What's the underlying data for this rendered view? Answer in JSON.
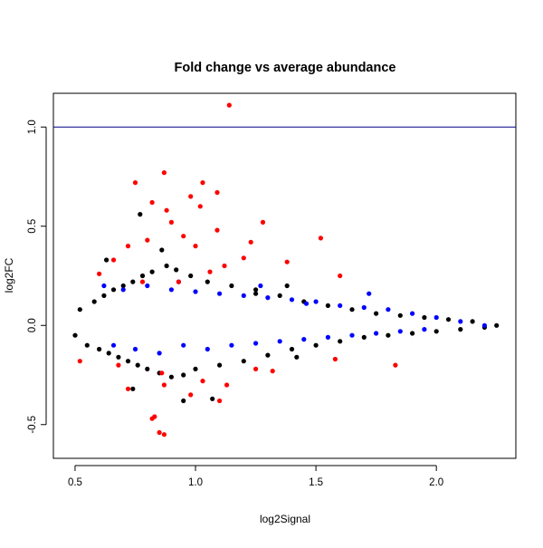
{
  "chart_data": {
    "type": "scatter",
    "title": "Fold change vs average abundance",
    "xlabel": "log2Signal",
    "ylabel": "log2FC",
    "xlim": [
      0.41,
      2.33
    ],
    "ylim": [
      -0.67,
      1.17
    ],
    "x_ticks": [
      0.5,
      1.0,
      1.5,
      2.0
    ],
    "x_tick_labels": [
      "0.5",
      "1.0",
      "1.5",
      "2.0"
    ],
    "y_ticks": [
      -0.5,
      0.0,
      0.5,
      1.0
    ],
    "y_tick_labels": [
      "-0.5",
      "0.0",
      "0.5",
      "1.0"
    ],
    "reference_line": {
      "y": 1.0,
      "color": "#00008b"
    },
    "grid": false,
    "colors": {
      "base": "#000000",
      "blue": "#0000ff",
      "red": "#ff0000"
    },
    "series": [
      {
        "color": "#000000",
        "description": "bulk points concentrated near 0 (dense cloud)",
        "points": [
          [
            0.5,
            -0.05
          ],
          [
            0.52,
            0.08
          ],
          [
            0.55,
            -0.1
          ],
          [
            0.58,
            0.12
          ],
          [
            0.6,
            -0.12
          ],
          [
            0.62,
            0.15
          ],
          [
            0.64,
            -0.14
          ],
          [
            0.66,
            0.18
          ],
          [
            0.68,
            -0.16
          ],
          [
            0.7,
            0.2
          ],
          [
            0.72,
            -0.18
          ],
          [
            0.74,
            0.22
          ],
          [
            0.76,
            -0.2
          ],
          [
            0.78,
            0.25
          ],
          [
            0.8,
            -0.22
          ],
          [
            0.82,
            0.27
          ],
          [
            0.85,
            -0.24
          ],
          [
            0.88,
            0.3
          ],
          [
            0.9,
            -0.26
          ],
          [
            0.92,
            0.28
          ],
          [
            0.95,
            -0.25
          ],
          [
            0.98,
            0.25
          ],
          [
            1.0,
            -0.22
          ],
          [
            1.05,
            0.22
          ],
          [
            1.1,
            -0.2
          ],
          [
            1.15,
            0.2
          ],
          [
            1.2,
            -0.18
          ],
          [
            1.25,
            0.18
          ],
          [
            1.3,
            -0.15
          ],
          [
            1.35,
            0.15
          ],
          [
            1.4,
            -0.12
          ],
          [
            1.45,
            0.12
          ],
          [
            1.5,
            -0.1
          ],
          [
            1.55,
            0.1
          ],
          [
            1.6,
            -0.08
          ],
          [
            1.65,
            0.08
          ],
          [
            1.7,
            -0.06
          ],
          [
            1.75,
            0.06
          ],
          [
            1.8,
            -0.05
          ],
          [
            1.85,
            0.05
          ],
          [
            1.9,
            -0.04
          ],
          [
            1.95,
            0.04
          ],
          [
            2.0,
            -0.03
          ],
          [
            2.05,
            0.03
          ],
          [
            2.1,
            -0.02
          ],
          [
            2.15,
            0.02
          ],
          [
            2.2,
            -0.01
          ],
          [
            2.25,
            0.0
          ],
          [
            0.77,
            0.56
          ],
          [
            0.74,
            -0.32
          ],
          [
            0.95,
            -0.38
          ],
          [
            1.07,
            -0.37
          ],
          [
            0.86,
            0.38
          ],
          [
            0.63,
            0.33
          ],
          [
            1.38,
            0.2
          ],
          [
            1.25,
            0.16
          ],
          [
            1.42,
            -0.16
          ]
        ]
      },
      {
        "color": "#0000ff",
        "description": "blue points in a band around 0, mostly in x 0.6–1.9",
        "points": [
          [
            0.62,
            0.2
          ],
          [
            0.66,
            -0.1
          ],
          [
            0.7,
            0.18
          ],
          [
            0.75,
            -0.12
          ],
          [
            0.8,
            0.2
          ],
          [
            0.85,
            -0.14
          ],
          [
            0.9,
            0.18
          ],
          [
            0.95,
            -0.1
          ],
          [
            1.0,
            0.17
          ],
          [
            1.05,
            -0.12
          ],
          [
            1.1,
            0.16
          ],
          [
            1.15,
            -0.1
          ],
          [
            1.2,
            0.15
          ],
          [
            1.25,
            -0.09
          ],
          [
            1.3,
            0.14
          ],
          [
            1.35,
            -0.08
          ],
          [
            1.4,
            0.13
          ],
          [
            1.45,
            -0.07
          ],
          [
            1.5,
            0.12
          ],
          [
            1.55,
            -0.06
          ],
          [
            1.6,
            0.1
          ],
          [
            1.65,
            -0.05
          ],
          [
            1.7,
            0.09
          ],
          [
            1.75,
            -0.04
          ],
          [
            1.8,
            0.08
          ],
          [
            1.85,
            -0.03
          ],
          [
            1.9,
            0.06
          ],
          [
            1.95,
            -0.02
          ],
          [
            2.0,
            0.04
          ],
          [
            2.1,
            0.02
          ],
          [
            2.2,
            0.0
          ],
          [
            1.27,
            0.2
          ],
          [
            1.46,
            0.11
          ],
          [
            1.72,
            0.16
          ],
          [
            0.93,
            0.22
          ]
        ]
      },
      {
        "color": "#ff0000",
        "description": "highlighted outliers (red)",
        "points": [
          [
            1.14,
            1.11
          ],
          [
            0.87,
            0.77
          ],
          [
            0.75,
            0.72
          ],
          [
            1.03,
            0.72
          ],
          [
            1.09,
            0.67
          ],
          [
            0.98,
            0.65
          ],
          [
            0.82,
            0.62
          ],
          [
            0.88,
            0.58
          ],
          [
            1.02,
            0.6
          ],
          [
            1.28,
            0.52
          ],
          [
            0.9,
            0.52
          ],
          [
            1.09,
            0.48
          ],
          [
            1.23,
            0.42
          ],
          [
            1.52,
            0.44
          ],
          [
            0.95,
            0.45
          ],
          [
            1.0,
            0.4
          ],
          [
            0.72,
            0.4
          ],
          [
            0.8,
            0.43
          ],
          [
            1.2,
            0.34
          ],
          [
            1.12,
            0.3
          ],
          [
            1.38,
            0.32
          ],
          [
            0.66,
            0.33
          ],
          [
            1.06,
            0.27
          ],
          [
            1.6,
            0.25
          ],
          [
            0.6,
            0.26
          ],
          [
            0.78,
            0.22
          ],
          [
            0.93,
            0.22
          ],
          [
            0.52,
            -0.18
          ],
          [
            0.68,
            -0.2
          ],
          [
            0.86,
            -0.24
          ],
          [
            1.03,
            -0.28
          ],
          [
            1.13,
            -0.3
          ],
          [
            0.72,
            -0.32
          ],
          [
            0.98,
            -0.35
          ],
          [
            1.1,
            -0.38
          ],
          [
            0.87,
            -0.3
          ],
          [
            1.25,
            -0.22
          ],
          [
            1.32,
            -0.23
          ],
          [
            1.83,
            -0.2
          ],
          [
            1.58,
            -0.17
          ],
          [
            0.82,
            -0.47
          ],
          [
            0.85,
            -0.54
          ],
          [
            0.87,
            -0.55
          ],
          [
            0.83,
            -0.46
          ]
        ]
      }
    ]
  }
}
